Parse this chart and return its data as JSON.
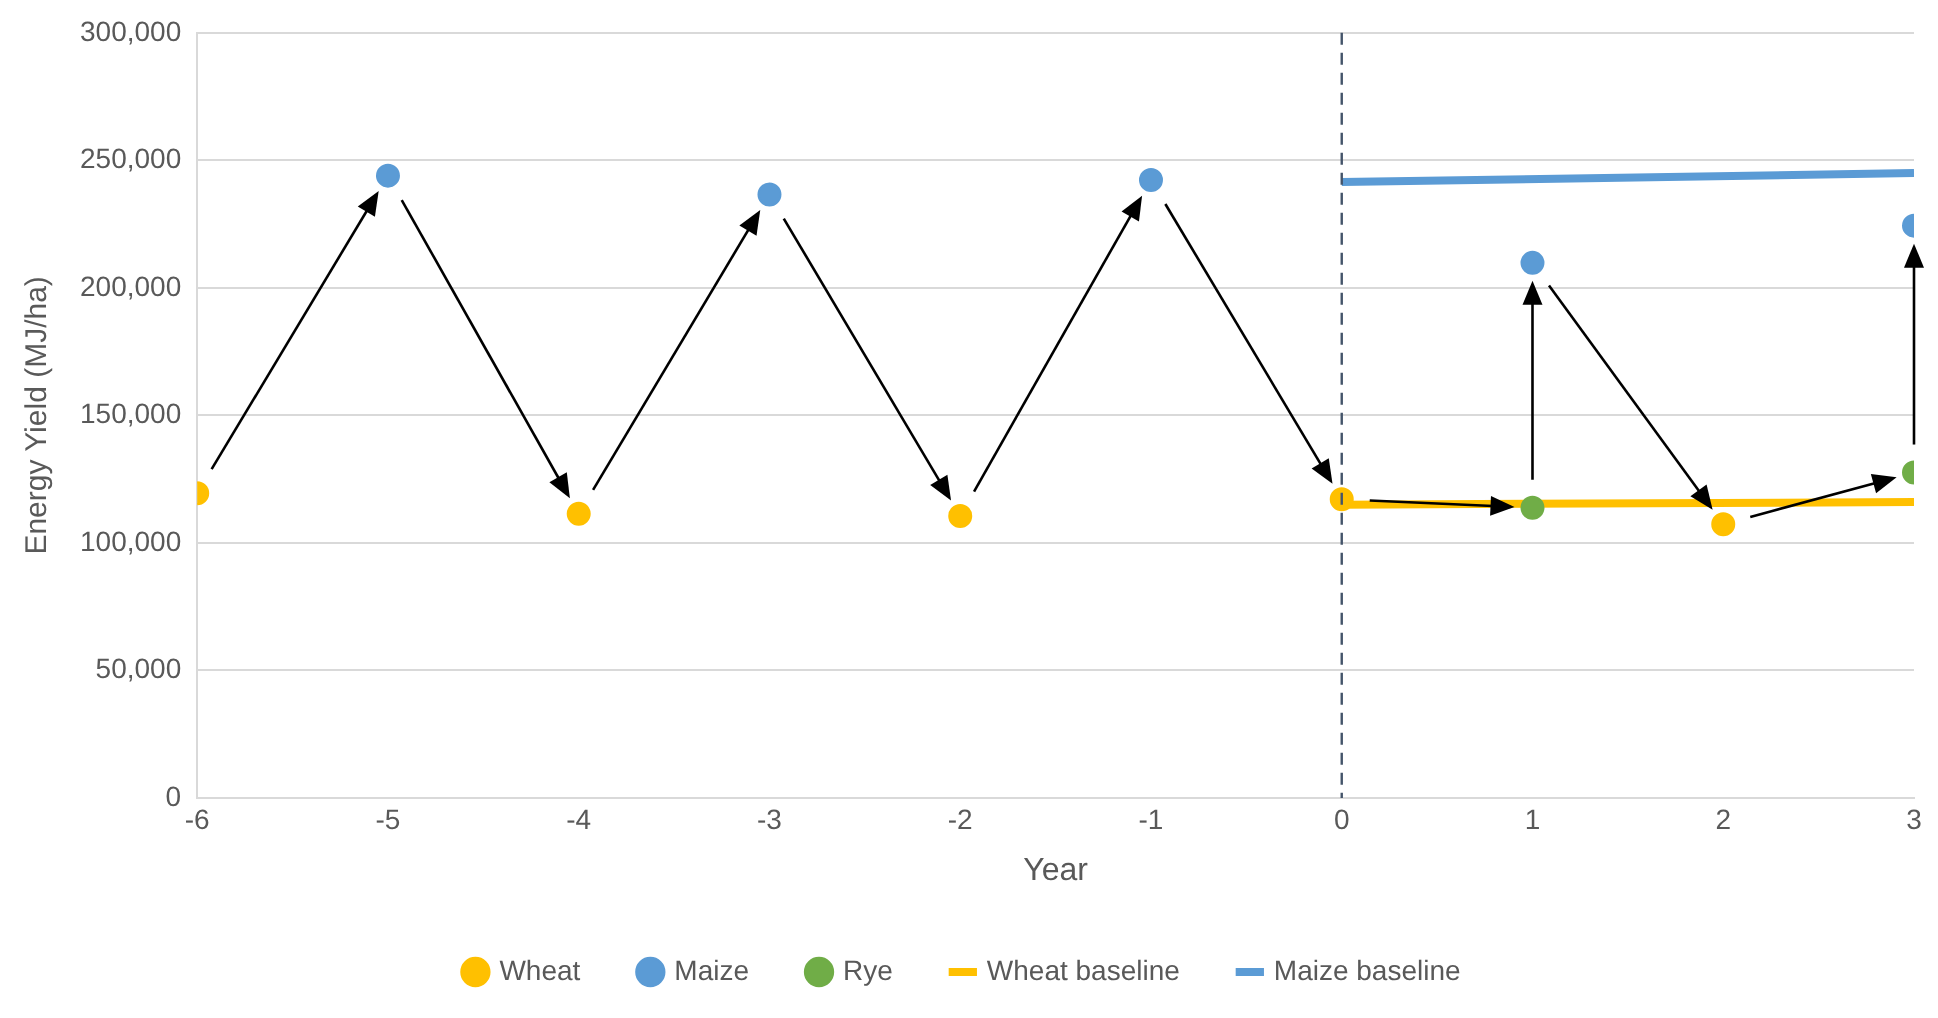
{
  "chart_data": {
    "type": "scatter",
    "xlabel": "Year",
    "ylabel": "Energy Yield (MJ/ha)",
    "xlim": [
      -6,
      3
    ],
    "xticks": [
      -6,
      -5,
      -4,
      -3,
      -2,
      -1,
      0,
      1,
      2,
      3
    ],
    "ylim": [
      0,
      300000
    ],
    "yticks": [
      {
        "value": 0,
        "label": "0"
      },
      {
        "value": 50000,
        "label": "50,000"
      },
      {
        "value": 100000,
        "label": "100,000"
      },
      {
        "value": 150000,
        "label": "150,000"
      },
      {
        "value": 200000,
        "label": "200,000"
      },
      {
        "value": 250000,
        "label": "250,000"
      },
      {
        "value": 300000,
        "label": "300,000"
      }
    ],
    "grid": "y",
    "legend": "bottom",
    "series": [
      {
        "name": "Wheat",
        "marker": "circle",
        "color": "#ffc000",
        "x": [
          -6,
          -4,
          -2,
          0,
          2
        ],
        "values": [
          119500,
          111400,
          110600,
          117100,
          107300
        ]
      },
      {
        "name": "Maize",
        "marker": "circle",
        "color": "#5b9bd5",
        "x": [
          -5,
          -3,
          -1,
          1,
          3
        ],
        "values": [
          244000,
          236600,
          242300,
          209800,
          224400
        ]
      },
      {
        "name": "Rye",
        "marker": "circle",
        "color": "#70ad47",
        "x": [
          1,
          3
        ],
        "values": [
          113800,
          127600
        ]
      },
      {
        "name": "Wheat baseline",
        "type": "line",
        "marker": "none",
        "color": "#ffc000",
        "line_style": "solid",
        "x": [
          0,
          3
        ],
        "values": [
          115000,
          116000
        ]
      },
      {
        "name": "Maize baseline",
        "type": "line",
        "marker": "none",
        "color": "#5b9bd5",
        "line_style": "solid",
        "x": [
          0,
          3
        ],
        "values": [
          241500,
          245000
        ]
      }
    ],
    "ref_lines": [
      {
        "axis": "x",
        "value": 0,
        "color": "#44546a",
        "line_style": "dashed"
      }
    ]
  }
}
